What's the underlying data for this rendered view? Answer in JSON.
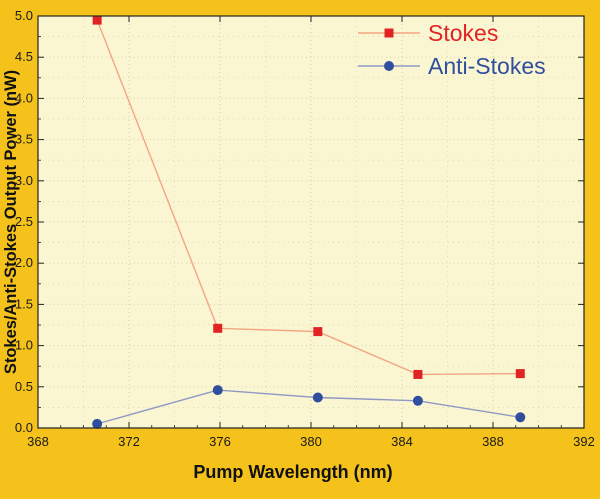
{
  "chart_data": {
    "type": "line",
    "title": "",
    "xlabel": "Pump Wavelength (nm)",
    "ylabel": "Stokes/Anti-Stokes Output Power (nW)",
    "xlim": [
      368,
      392
    ],
    "ylim": [
      0,
      5.0
    ],
    "x_ticks": [
      "368",
      "372",
      "376",
      "380",
      "384",
      "388",
      "392"
    ],
    "y_ticks": [
      "0.0",
      "0.5",
      "1.0",
      "1.5",
      "2.0",
      "2.5",
      "3.0",
      "3.5",
      "4.0",
      "4.5",
      "5.0"
    ],
    "grid": true,
    "legend_position": "top-right",
    "series": [
      {
        "name": "Stokes",
        "color": "#e02424",
        "line_color": "#f2a684",
        "marker": "square",
        "x": [
          370.6,
          375.9,
          380.3,
          384.7,
          389.2
        ],
        "y": [
          4.95,
          1.21,
          1.17,
          0.65,
          0.66
        ]
      },
      {
        "name": "Anti-Stokes",
        "color": "#2f4f9e",
        "line_color": "#8f98c4",
        "marker": "circle",
        "x": [
          370.6,
          375.9,
          380.3,
          384.7,
          389.2
        ],
        "y": [
          0.05,
          0.46,
          0.37,
          0.33,
          0.13
        ]
      }
    ]
  },
  "colors": {
    "page_background": "#f4c21b",
    "plot_background": "#fbf6d2",
    "grid": "#d9d3a8"
  }
}
